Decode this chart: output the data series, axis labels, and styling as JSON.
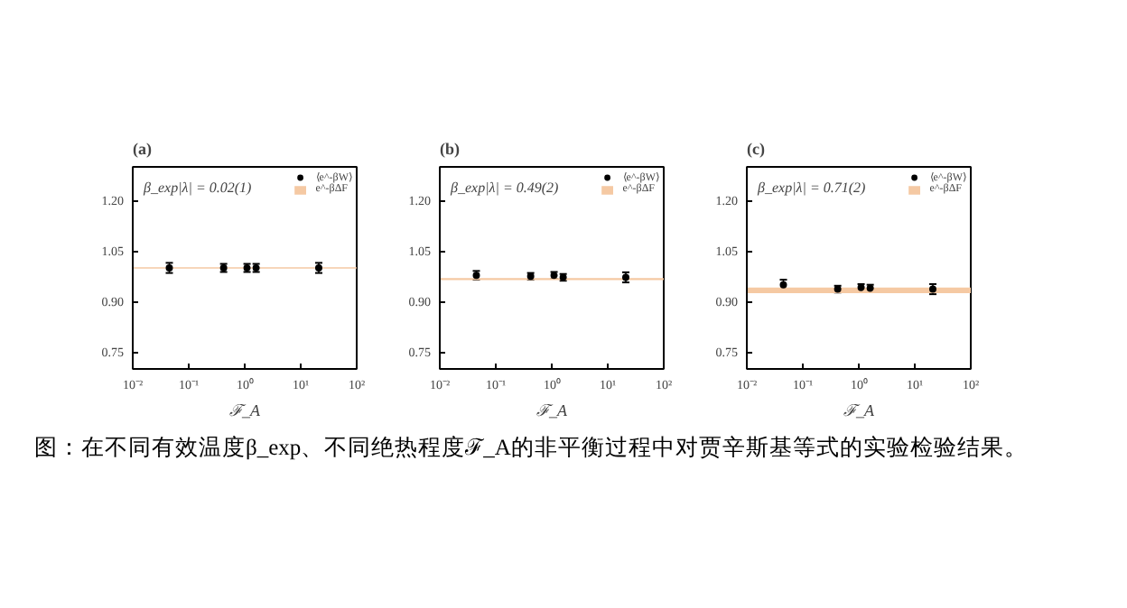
{
  "chart_data": [
    {
      "type": "scatter",
      "title": "(a)",
      "annotations": [
        "β_exp|λ| = 0.02(1)",
        "图：在不同有效温度β_exp、不同绝热程度ℱ_A的非平衡过程中对贾辛斯基等式的实验检验结果。"
      ],
      "xlabel": "ℱ_A",
      "log": "x",
      "xlim": [
        0.01,
        100
      ],
      "xticks": [
        {
          "value": 0.01,
          "label": "10⁻²"
        },
        {
          "value": 0.1,
          "label": "10⁻¹"
        },
        {
          "value": 1,
          "label": "10⁰"
        },
        {
          "value": 10,
          "label": "10¹"
        },
        {
          "value": 100,
          "label": "10²"
        }
      ],
      "ylim": [
        0.7,
        1.3
      ],
      "yticks": [
        {
          "value": 0.75,
          "label": "0.75"
        },
        {
          "value": 0.9,
          "label": "0.90"
        },
        {
          "value": 1.05,
          "label": "1.05"
        },
        {
          "value": 1.2,
          "label": "1.20"
        }
      ],
      "legend": "top right",
      "marker": "circle",
      "series": [
        {
          "name": "⟨e^-βW⟩",
          "color": "#000000",
          "x": [
            0.045,
            0.42,
            1.1,
            1.6,
            21
          ],
          "values": [
            1.0,
            1.0,
            1.0,
            1.0,
            1.0
          ],
          "errors": [
            0.015,
            0.012,
            0.012,
            0.012,
            0.015
          ]
        }
      ],
      "bands": [
        {
          "axis": "y",
          "from": 0.998,
          "to": 1.002,
          "label": "e^-βΔF",
          "color": "#f5c9a3"
        }
      ]
    },
    {
      "type": "scatter",
      "title": "(b)",
      "annotations": [
        "β_exp|λ| = 0.49(2)"
      ],
      "xlabel": "ℱ_A",
      "log": "x",
      "xlim": [
        0.01,
        100
      ],
      "xticks": [
        {
          "value": 0.01,
          "label": "10⁻²"
        },
        {
          "value": 0.1,
          "label": "10⁻¹"
        },
        {
          "value": 1,
          "label": "10⁰"
        },
        {
          "value": 10,
          "label": "10¹"
        },
        {
          "value": 100,
          "label": "10²"
        }
      ],
      "ylim": [
        0.7,
        1.3
      ],
      "yticks": [
        {
          "value": 0.75,
          "label": "0.75"
        },
        {
          "value": 0.9,
          "label": "0.90"
        },
        {
          "value": 1.05,
          "label": "1.05"
        },
        {
          "value": 1.2,
          "label": "1.20"
        }
      ],
      "legend": "top right",
      "marker": "circle",
      "series": [
        {
          "name": "⟨e^-βW⟩",
          "color": "#000000",
          "x": [
            0.045,
            0.42,
            1.1,
            1.6,
            21
          ],
          "values": [
            0.978,
            0.975,
            0.978,
            0.972,
            0.972
          ],
          "errors": [
            0.013,
            0.01,
            0.01,
            0.01,
            0.015
          ]
        }
      ],
      "bands": [
        {
          "axis": "y",
          "from": 0.964,
          "to": 0.97,
          "label": "e^-βΔF",
          "color": "#f5c9a3"
        }
      ]
    },
    {
      "type": "scatter",
      "title": "(c)",
      "annotations": [
        "β_exp|λ| = 0.71(2)"
      ],
      "xlabel": "ℱ_A",
      "log": "x",
      "xlim": [
        0.01,
        100
      ],
      "xticks": [
        {
          "value": 0.01,
          "label": "10⁻²"
        },
        {
          "value": 0.1,
          "label": "10⁻¹"
        },
        {
          "value": 1,
          "label": "10⁰"
        },
        {
          "value": 10,
          "label": "10¹"
        },
        {
          "value": 100,
          "label": "10²"
        }
      ],
      "ylim": [
        0.7,
        1.3
      ],
      "yticks": [
        {
          "value": 0.75,
          "label": "0.75"
        },
        {
          "value": 0.9,
          "label": "0.90"
        },
        {
          "value": 1.05,
          "label": "1.05"
        },
        {
          "value": 1.2,
          "label": "1.20"
        }
      ],
      "legend": "top right",
      "marker": "circle",
      "series": [
        {
          "name": "⟨e^-βW⟩",
          "color": "#000000",
          "x": [
            0.045,
            0.42,
            1.1,
            1.6,
            21
          ],
          "values": [
            0.95,
            0.937,
            0.942,
            0.94,
            0.937
          ],
          "errors": [
            0.015,
            0.01,
            0.01,
            0.01,
            0.015
          ]
        }
      ],
      "bands": [
        {
          "axis": "y",
          "from": 0.925,
          "to": 0.942,
          "label": "e^-βΔF",
          "color": "#f5c9a3"
        }
      ]
    }
  ]
}
